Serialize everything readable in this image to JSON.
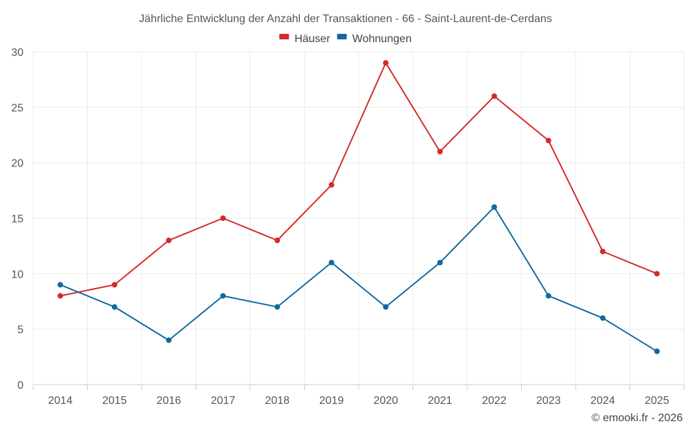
{
  "chart_data": {
    "type": "line",
    "title": "Jährliche Entwicklung der Anzahl der Transaktionen - 66 - Saint-Laurent-de-Cerdans",
    "categories": [
      "2014",
      "2015",
      "2016",
      "2017",
      "2018",
      "2019",
      "2020",
      "2021",
      "2022",
      "2023",
      "2024",
      "2025"
    ],
    "series": [
      {
        "name": "Häuser",
        "color": "#d42a2a",
        "values": [
          8,
          9,
          13,
          15,
          13,
          18,
          29,
          21,
          26,
          22,
          12,
          10
        ]
      },
      {
        "name": "Wohnungen",
        "color": "#0e6a9c",
        "values": [
          9,
          7,
          4,
          8,
          7,
          11,
          7,
          11,
          16,
          8,
          6,
          3
        ]
      }
    ],
    "ylim": [
      0,
      30
    ],
    "yticks": [
      0,
      5,
      10,
      15,
      20,
      25,
      30
    ],
    "xlabel": "",
    "ylabel": "",
    "grid": true,
    "legend_position": "top-center",
    "credit": "© emooki.fr - 2026"
  }
}
